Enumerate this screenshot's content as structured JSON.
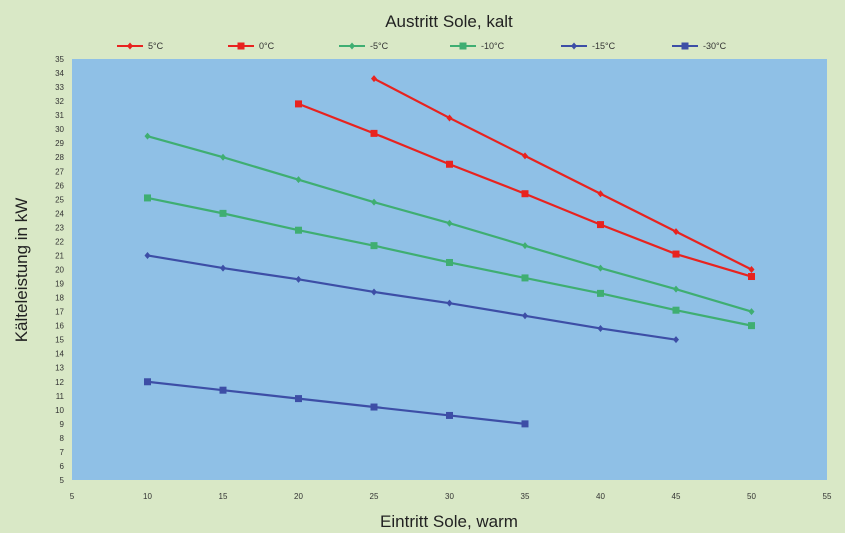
{
  "chart_data": {
    "type": "line",
    "title": "Austritt Sole, kalt",
    "xlabel": "Eintritt Sole, warm",
    "ylabel": "Kälteleistung in kW",
    "xlim": [
      5,
      55
    ],
    "ylim": [
      5,
      35
    ],
    "xticks": [
      5,
      10,
      15,
      20,
      25,
      30,
      35,
      40,
      45,
      50,
      55
    ],
    "yticks": [
      5,
      6,
      7,
      8,
      9,
      10,
      11,
      12,
      13,
      14,
      15,
      16,
      17,
      18,
      19,
      20,
      21,
      22,
      23,
      24,
      25,
      26,
      27,
      28,
      29,
      30,
      31,
      32,
      33,
      34,
      35
    ],
    "grid": false,
    "legend_position": "top",
    "plot_background": "#8fc0e6",
    "series": [
      {
        "name": "5°C",
        "color": "#e8231f",
        "marker": "diamond",
        "x": [
          25,
          30,
          35,
          40,
          45,
          50
        ],
        "y": [
          33.6,
          30.8,
          28.1,
          25.4,
          22.7,
          20.0
        ]
      },
      {
        "name": "0°C",
        "color": "#e8231f",
        "marker": "square",
        "x": [
          20,
          25,
          30,
          35,
          40,
          45,
          50
        ],
        "y": [
          31.8,
          29.7,
          27.5,
          25.4,
          23.2,
          21.1,
          19.5
        ]
      },
      {
        "name": "-5°C",
        "color": "#3fae72",
        "marker": "diamond",
        "x": [
          10,
          15,
          20,
          25,
          30,
          35,
          40,
          45,
          50
        ],
        "y": [
          29.5,
          28.0,
          26.4,
          24.8,
          23.3,
          21.7,
          20.1,
          18.6,
          17.0
        ]
      },
      {
        "name": "-10°C",
        "color": "#3fae72",
        "marker": "square",
        "x": [
          10,
          15,
          20,
          25,
          30,
          35,
          40,
          45,
          50
        ],
        "y": [
          25.1,
          24.0,
          22.8,
          21.7,
          20.5,
          19.4,
          18.3,
          17.1,
          16.0
        ]
      },
      {
        "name": "-15°C",
        "color": "#3d4ea6",
        "marker": "diamond",
        "x": [
          10,
          15,
          20,
          25,
          30,
          35,
          40,
          45
        ],
        "y": [
          21.0,
          20.1,
          19.3,
          18.4,
          17.6,
          16.7,
          15.8,
          15.0
        ]
      },
      {
        "name": "-30°C",
        "color": "#3d4ea6",
        "marker": "square",
        "x": [
          10,
          15,
          20,
          25,
          30,
          35
        ],
        "y": [
          12.0,
          11.4,
          10.8,
          10.2,
          9.6,
          9.0
        ]
      }
    ]
  }
}
